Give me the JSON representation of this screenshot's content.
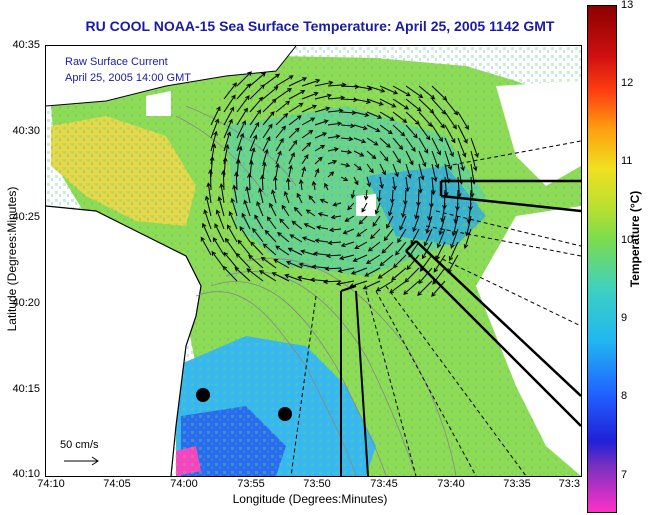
{
  "title": "RU COOL  NOAA-15  Sea Surface Temperature:  April 25, 2005 1142 GMT",
  "legend": {
    "line1": "Raw Surface Current",
    "line2": "April 25, 2005 14:00 GMT",
    "scale": "50 cm/s"
  },
  "axes": {
    "xlabel": "Longitude (Degrees:Minutes)",
    "ylabel": "Latitude (Degrees:Minutes)",
    "xticks": [
      "74:10",
      "74:05",
      "74:00",
      "73:55",
      "73:50",
      "73:45",
      "73:40",
      "73:35",
      "73:3"
    ],
    "yticks": [
      "40:35",
      "40:30",
      "40:25",
      "40:20",
      "40:15",
      "40:10"
    ]
  },
  "colorbar": {
    "label": "Temperature (°C)",
    "ticks": [
      "13",
      "12",
      "11",
      "10",
      "9",
      "8",
      "7"
    ]
  },
  "colors": {
    "title": "#1a1aa8",
    "land": "#ffffff",
    "warm_sst": "#e8d84a",
    "mid_sst": "#8fdc52",
    "cool_sst": "#37b8f0"
  }
}
